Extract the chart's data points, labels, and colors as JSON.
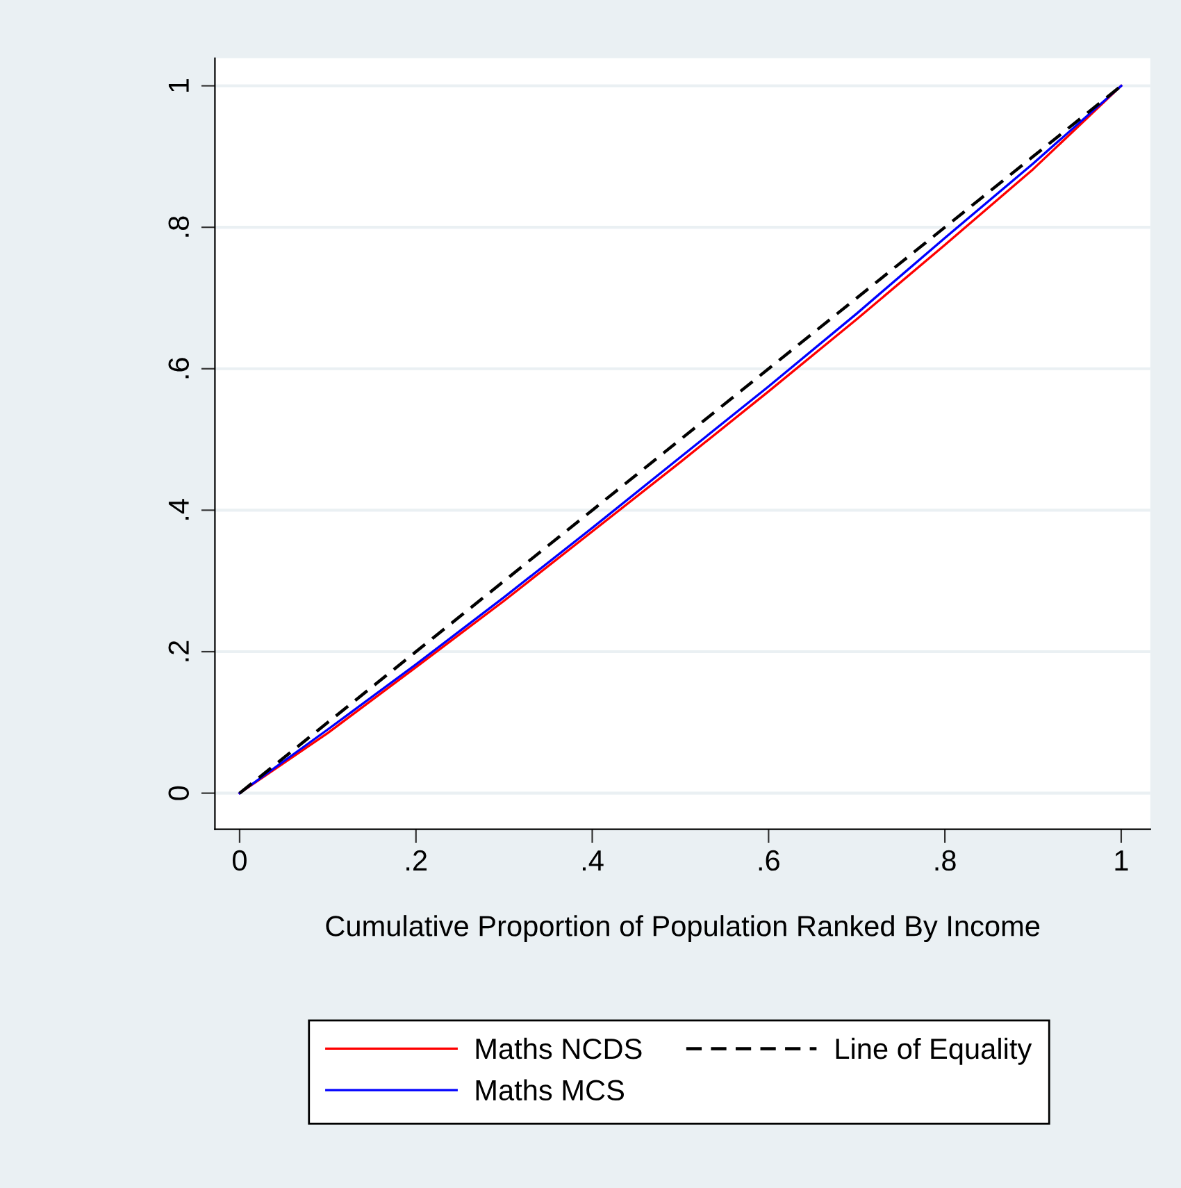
{
  "chart_data": {
    "type": "line",
    "xlabel": "Cumulative Proportion of Population Ranked By Income",
    "x": [
      0,
      0.1,
      0.2,
      0.3,
      0.4,
      0.5,
      0.6,
      0.7,
      0.8,
      0.9,
      1
    ],
    "series": [
      {
        "name": "Maths NCDS",
        "color": "#ff0000",
        "values": [
          0,
          0.085,
          0.178,
          0.272,
          0.37,
          0.468,
          0.568,
          0.67,
          0.775,
          0.882,
          1
        ]
      },
      {
        "name": "Maths MCS",
        "color": "#0000ff",
        "values": [
          0,
          0.09,
          0.182,
          0.277,
          0.375,
          0.475,
          0.575,
          0.678,
          0.785,
          0.89,
          1
        ]
      },
      {
        "name": "Line of Equality",
        "color": "#000000",
        "line_style": "dashed",
        "values": [
          0,
          0.1,
          0.2,
          0.3,
          0.4,
          0.5,
          0.6,
          0.7,
          0.8,
          0.9,
          1
        ]
      }
    ],
    "xlim": [
      -0.028,
      1.033
    ],
    "ylim": [
      -0.051,
      1.039
    ],
    "xticks": [
      0,
      {
        "value": 0.2,
        "label": ".2"
      },
      {
        "value": 0.4,
        "label": ".4"
      },
      {
        "value": 0.6,
        "label": ".6"
      },
      {
        "value": 0.8,
        "label": ".8"
      },
      1
    ],
    "yticks": [
      0,
      {
        "value": 0.2,
        "label": ".2"
      },
      {
        "value": 0.4,
        "label": ".4"
      },
      {
        "value": 0.6,
        "label": ".6"
      },
      {
        "value": 0.8,
        "label": ".8"
      },
      1
    ],
    "grid": "y",
    "legend": "bottom",
    "marker": "none"
  }
}
